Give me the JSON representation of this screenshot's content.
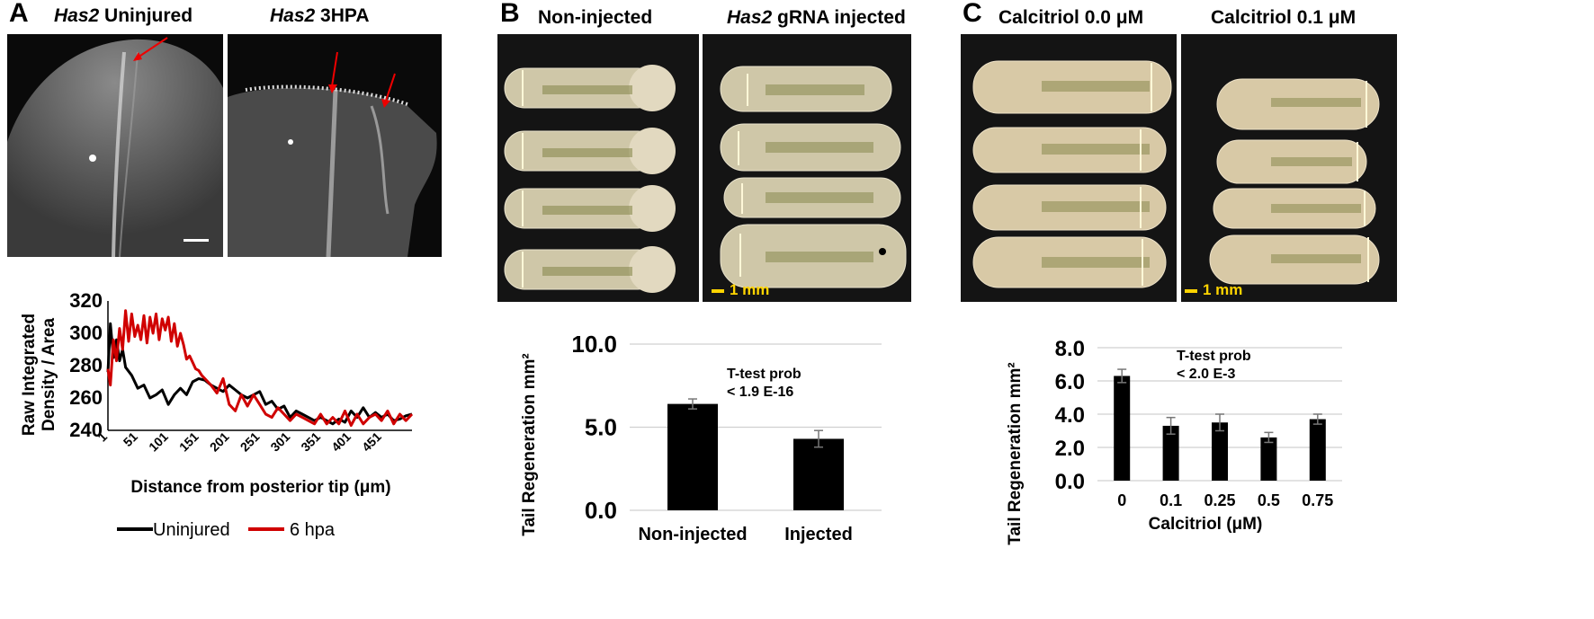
{
  "figure": {
    "panel_a": {
      "label": "A",
      "image1_title_italic": "Has2",
      "image1_title_rest": " Uninjured",
      "image2_title_italic": "Has2",
      "image2_title_rest": "  3HPA"
    },
    "panel_b": {
      "label": "B",
      "image1_title": "Non-injected",
      "image2_title_italic": "Has2",
      "image2_title_rest": " gRNA injected",
      "scale_bar": "1 mm"
    },
    "panel_c": {
      "label": "C",
      "image1_title": "Calcitriol 0.0 μM",
      "image2_title": "Calcitriol 0.1 μM",
      "scale_bar": "1 mm"
    }
  },
  "chart_data": [
    {
      "type": "line",
      "xlabel": "Distance from posterior tip (μm)",
      "ylabel_line1": "Raw Integrated",
      "ylabel_line2": "Density / Area",
      "ylim": [
        240,
        320
      ],
      "xlim": [
        1,
        500
      ],
      "yticks": [
        "320",
        "300",
        "280",
        "260",
        "240"
      ],
      "xticks": [
        "1",
        "51",
        "101",
        "151",
        "201",
        "251",
        "301",
        "351",
        "401",
        "451"
      ],
      "grid": false,
      "legend_position": "bottom",
      "series": [
        {
          "name": "Uninjured",
          "color": "#000000",
          "x": [
            1,
            5,
            10,
            15,
            20,
            25,
            30,
            40,
            50,
            60,
            70,
            80,
            90,
            100,
            110,
            120,
            130,
            140,
            150,
            160,
            170,
            180,
            190,
            200,
            210,
            220,
            230,
            240,
            250,
            260,
            270,
            280,
            290,
            300,
            310,
            320,
            330,
            340,
            350,
            360,
            370,
            380,
            390,
            400,
            410,
            420,
            430,
            440,
            450,
            460,
            470,
            480,
            490,
            500
          ],
          "y": [
            276,
            306,
            285,
            296,
            283,
            290,
            279,
            274,
            266,
            268,
            260,
            262,
            265,
            256,
            262,
            266,
            262,
            270,
            272,
            271,
            268,
            266,
            264,
            268,
            265,
            262,
            260,
            262,
            264,
            256,
            258,
            253,
            255,
            248,
            252,
            250,
            248,
            246,
            248,
            246,
            244,
            247,
            245,
            252,
            248,
            254,
            248,
            251,
            248,
            250,
            246,
            247,
            249,
            250
          ]
        },
        {
          "name": "6 hpa",
          "color": "#d00000",
          "x": [
            1,
            5,
            10,
            15,
            20,
            25,
            30,
            35,
            40,
            45,
            50,
            55,
            60,
            65,
            70,
            75,
            80,
            85,
            90,
            95,
            100,
            105,
            110,
            115,
            120,
            125,
            130,
            135,
            140,
            145,
            150,
            155,
            160,
            170,
            180,
            190,
            200,
            210,
            220,
            230,
            240,
            250,
            260,
            270,
            280,
            290,
            300,
            310,
            320,
            330,
            340,
            350,
            360,
            370,
            380,
            390,
            400,
            410,
            420,
            430,
            440,
            450,
            460,
            470,
            480,
            490,
            500
          ],
          "y": [
            278,
            268,
            296,
            283,
            303,
            290,
            314,
            295,
            312,
            298,
            305,
            296,
            311,
            294,
            310,
            300,
            312,
            296,
            309,
            302,
            310,
            295,
            306,
            292,
            300,
            293,
            284,
            286,
            282,
            278,
            277,
            274,
            272,
            268,
            263,
            272,
            256,
            252,
            262,
            255,
            262,
            256,
            250,
            248,
            254,
            250,
            246,
            250,
            248,
            246,
            244,
            250,
            244,
            248,
            244,
            252,
            243,
            250,
            244,
            248,
            250,
            246,
            252,
            244,
            250,
            246,
            250
          ]
        }
      ]
    },
    {
      "type": "bar",
      "ylabel": "Tail Regeneration mm²",
      "ylim": [
        0,
        10
      ],
      "yticks": [
        "10.0",
        "5.0",
        "0.0"
      ],
      "categories": [
        "Non-injected",
        "Injected"
      ],
      "values": [
        6.4,
        4.3
      ],
      "errors": [
        0.3,
        0.5
      ],
      "annotation_line1": "T-test prob",
      "annotation_line2": "< 1.9 E-16",
      "grid": true,
      "bar_color": "#000000"
    },
    {
      "type": "bar",
      "ylabel": "Tail Regeneration mm²",
      "xlabel": "Calcitriol (μM)",
      "ylim": [
        0,
        8
      ],
      "yticks": [
        "8.0",
        "6.0",
        "4.0",
        "2.0",
        "0.0"
      ],
      "categories": [
        "0",
        "0.1",
        "0.25",
        "0.5",
        "0.75"
      ],
      "values": [
        6.3,
        3.3,
        3.5,
        2.6,
        3.7
      ],
      "errors": [
        0.4,
        0.5,
        0.5,
        0.3,
        0.3
      ],
      "annotation_line1": "T-test prob",
      "annotation_line2": "< 2.0 E-3",
      "grid": true,
      "bar_color": "#000000"
    }
  ]
}
